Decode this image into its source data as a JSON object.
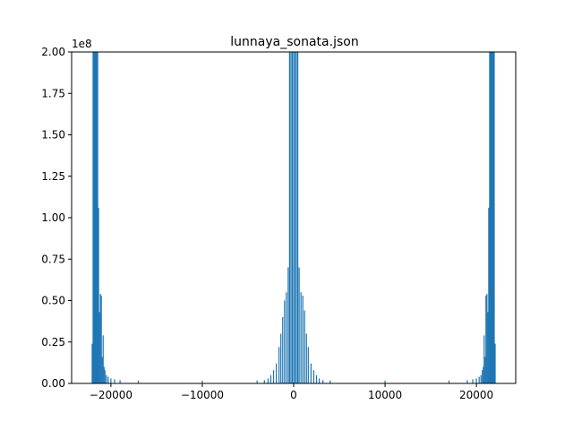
{
  "chart_data": {
    "type": "bar",
    "title": "lunnaya_sonata.json",
    "xlabel": "",
    "ylabel": "",
    "y_offset_text": "1e8",
    "xlim": [
      -24300,
      24300
    ],
    "ylim": [
      0,
      2.0
    ],
    "xticks": [
      -20000,
      -10000,
      0,
      10000,
      20000
    ],
    "xtick_labels": [
      "−20000",
      "−10000",
      "0",
      "10000",
      "20000"
    ],
    "yticks": [
      0,
      0.25,
      0.5,
      0.75,
      1.0,
      1.25,
      1.5,
      1.75,
      2.0
    ],
    "ytick_labels": [
      "0.00",
      "0.25",
      "0.50",
      "0.75",
      "1.00",
      "1.25",
      "1.50",
      "1.75",
      "2.00"
    ],
    "grid": false,
    "legend": "none",
    "color": "#1f77b4",
    "series": [
      {
        "values": [
          [
            -22050,
            0.24
          ],
          [
            -21950,
            2.0
          ],
          [
            -21850,
            2.0
          ],
          [
            -21750,
            2.0
          ],
          [
            -21650,
            2.0
          ],
          [
            -21550,
            2.0
          ],
          [
            -21450,
            2.0
          ],
          [
            -21350,
            1.06
          ],
          [
            -21250,
            0.43
          ],
          [
            -21150,
            0.54
          ],
          [
            -21050,
            0.53
          ],
          [
            -20950,
            0.16
          ],
          [
            -20850,
            0.29
          ],
          [
            -20750,
            0.1
          ],
          [
            -20650,
            0.08
          ],
          [
            -20500,
            0.05
          ],
          [
            -20300,
            0.04
          ],
          [
            -20000,
            0.03
          ],
          [
            -19600,
            0.025
          ],
          [
            -19000,
            0.02
          ],
          [
            -17000,
            0.018
          ],
          [
            -10000,
            0.017
          ],
          [
            -4000,
            0.018
          ],
          [
            -3200,
            0.02
          ],
          [
            -2800,
            0.03
          ],
          [
            -2500,
            0.05
          ],
          [
            -2200,
            0.08
          ],
          [
            -1900,
            0.12
          ],
          [
            -1600,
            0.22
          ],
          [
            -1400,
            0.3
          ],
          [
            -1200,
            0.4
          ],
          [
            -1000,
            0.5
          ],
          [
            -800,
            0.55
          ],
          [
            -600,
            0.7
          ],
          [
            -450,
            2.0
          ],
          [
            -300,
            2.0
          ],
          [
            -150,
            2.0
          ],
          [
            0,
            2.0
          ],
          [
            150,
            2.0
          ],
          [
            300,
            2.0
          ],
          [
            450,
            2.0
          ],
          [
            600,
            0.7
          ],
          [
            800,
            0.55
          ],
          [
            1000,
            0.53
          ],
          [
            1200,
            0.44
          ],
          [
            1400,
            0.3
          ],
          [
            1600,
            0.22
          ],
          [
            1900,
            0.12
          ],
          [
            2200,
            0.08
          ],
          [
            2500,
            0.05
          ],
          [
            2800,
            0.03
          ],
          [
            3200,
            0.02
          ],
          [
            4000,
            0.018
          ],
          [
            10000,
            0.017
          ],
          [
            17000,
            0.018
          ],
          [
            19000,
            0.02
          ],
          [
            19600,
            0.025
          ],
          [
            20000,
            0.03
          ],
          [
            20300,
            0.04
          ],
          [
            20500,
            0.05
          ],
          [
            20650,
            0.08
          ],
          [
            20750,
            0.1
          ],
          [
            20850,
            0.29
          ],
          [
            20950,
            0.16
          ],
          [
            21050,
            0.53
          ],
          [
            21150,
            0.54
          ],
          [
            21250,
            0.43
          ],
          [
            21350,
            1.06
          ],
          [
            21450,
            2.0
          ],
          [
            21550,
            2.0
          ],
          [
            21650,
            2.0
          ],
          [
            21750,
            2.0
          ],
          [
            21850,
            2.0
          ],
          [
            21950,
            2.0
          ],
          [
            22050,
            0.24
          ]
        ]
      }
    ]
  }
}
